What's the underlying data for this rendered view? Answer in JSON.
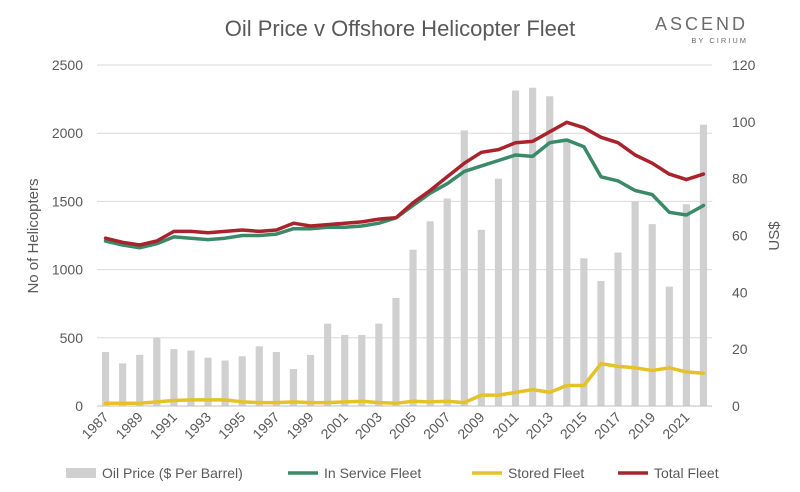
{
  "brand": {
    "name": "ASCEND",
    "sub": "BY CIRIUM"
  },
  "chart_data": {
    "type": "bar",
    "title": "Oil Price v Offshore Helicopter Fleet",
    "ylabel_left": "No of Helicopters",
    "ylabel_right": "US$",
    "ylim_left": [
      0,
      2500
    ],
    "ylim_right": [
      0,
      120
    ],
    "yticks_left": [
      0,
      500,
      1000,
      1500,
      2000,
      2500
    ],
    "yticks_right": [
      0,
      20,
      40,
      60,
      80,
      100,
      120
    ],
    "grid": true,
    "legend_position": "bottom",
    "categories": [
      1987,
      1988,
      1989,
      1990,
      1991,
      1992,
      1993,
      1994,
      1995,
      1996,
      1997,
      1998,
      1999,
      2000,
      2001,
      2002,
      2003,
      2004,
      2005,
      2006,
      2007,
      2008,
      2009,
      2010,
      2011,
      2012,
      2013,
      2014,
      2015,
      2016,
      2017,
      2018,
      2019,
      2020,
      2021,
      2022
    ],
    "series": [
      {
        "name": "Oil Price ($ Per Barrel)",
        "type": "bar",
        "axis": "right",
        "color": "#d0d0d0",
        "values": [
          19,
          15,
          18,
          24,
          20,
          19.5,
          17,
          16,
          17.5,
          21,
          19,
          13,
          18,
          29,
          25,
          25,
          29,
          38,
          55,
          65,
          73,
          97,
          62,
          80,
          111,
          112,
          109,
          94,
          52,
          44,
          54,
          72,
          64,
          42,
          71,
          99
        ]
      },
      {
        "name": "In Service Fleet",
        "type": "line",
        "axis": "left",
        "color": "#3a8a68",
        "values": [
          1210,
          1180,
          1160,
          1190,
          1240,
          1230,
          1220,
          1230,
          1250,
          1250,
          1260,
          1300,
          1300,
          1310,
          1310,
          1320,
          1340,
          1380,
          1470,
          1560,
          1630,
          1720,
          1760,
          1800,
          1840,
          1830,
          1930,
          1950,
          1900,
          1680,
          1650,
          1580,
          1550,
          1420,
          1400,
          1470
        ]
      },
      {
        "name": "Stored Fleet",
        "type": "line",
        "axis": "left",
        "color": "#e6c229",
        "values": [
          20,
          20,
          20,
          30,
          40,
          45,
          45,
          45,
          30,
          25,
          25,
          30,
          25,
          25,
          30,
          35,
          25,
          20,
          35,
          30,
          35,
          25,
          80,
          80,
          100,
          120,
          100,
          150,
          150,
          310,
          290,
          280,
          260,
          280,
          250,
          240
        ]
      },
      {
        "name": "Total Fleet",
        "type": "line",
        "axis": "left",
        "color": "#a8232b",
        "values": [
          1230,
          1200,
          1180,
          1210,
          1280,
          1280,
          1270,
          1280,
          1290,
          1280,
          1290,
          1340,
          1320,
          1330,
          1340,
          1350,
          1370,
          1380,
          1490,
          1580,
          1680,
          1780,
          1860,
          1880,
          1930,
          1940,
          2010,
          2080,
          2040,
          1970,
          1930,
          1840,
          1780,
          1700,
          1660,
          1700
        ]
      }
    ],
    "xtick_labels": [
      "1987",
      "1989",
      "1991",
      "1993",
      "1995",
      "1997",
      "1999",
      "2001",
      "2003",
      "2005",
      "2007",
      "2009",
      "2011",
      "2013",
      "2015",
      "2017",
      "2019",
      "2021"
    ]
  }
}
